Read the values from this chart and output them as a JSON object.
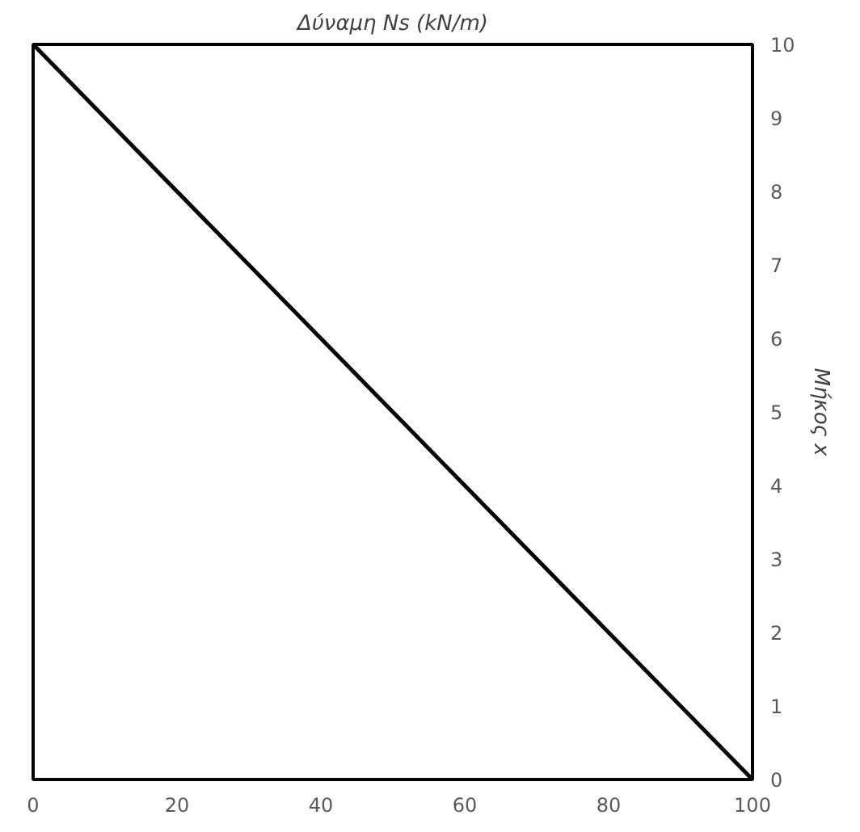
{
  "chart_data": {
    "type": "line",
    "title": "Δύναμη Ns (kN/m)",
    "ylabel": "Μήκος x",
    "x": [
      0,
      100
    ],
    "series": [
      {
        "color": "#000000",
        "values": [
          10,
          0
        ]
      }
    ],
    "xlim": [
      0,
      100
    ],
    "xticks": [
      0,
      20,
      40,
      60,
      80,
      100
    ],
    "ylim": [
      0,
      10
    ],
    "yticks": [
      0,
      1,
      2,
      3,
      4,
      5,
      6,
      7,
      8,
      9,
      10
    ],
    "grid": false,
    "marker": "none",
    "line_style": "solid"
  }
}
